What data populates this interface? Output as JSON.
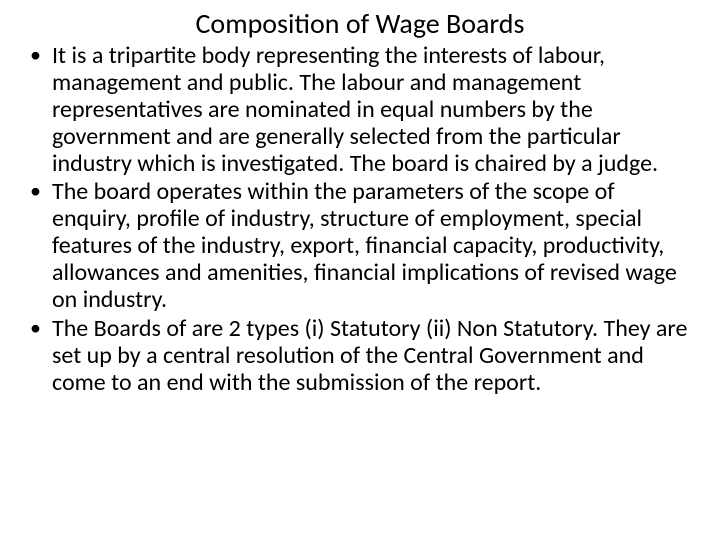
{
  "title": "Composition of Wage Boards",
  "bullets": [
    "It is a tripartite body representing the interests of labour, management and public. The labour and management representatives are nominated in equal numbers by the government  and are generally selected from the particular industry which is investigated. The board is chaired by a judge.",
    "The board operates within the parameters of the scope of enquiry, profile of industry, structure of employment, special features of the industry, export, financial capacity, productivity, allowances and amenities, financial implications of revised wage on industry.",
    "The Boards of are 2 types (i) Statutory (ii) Non Statutory. They are set up by a central resolution of the Central Government and come to an end with the submission of the report."
  ],
  "colors": {
    "background": "#ffffff",
    "text": "#000000"
  },
  "typography": {
    "title_fontsize": 28,
    "body_fontsize": 24,
    "font_family": "Calibri"
  }
}
